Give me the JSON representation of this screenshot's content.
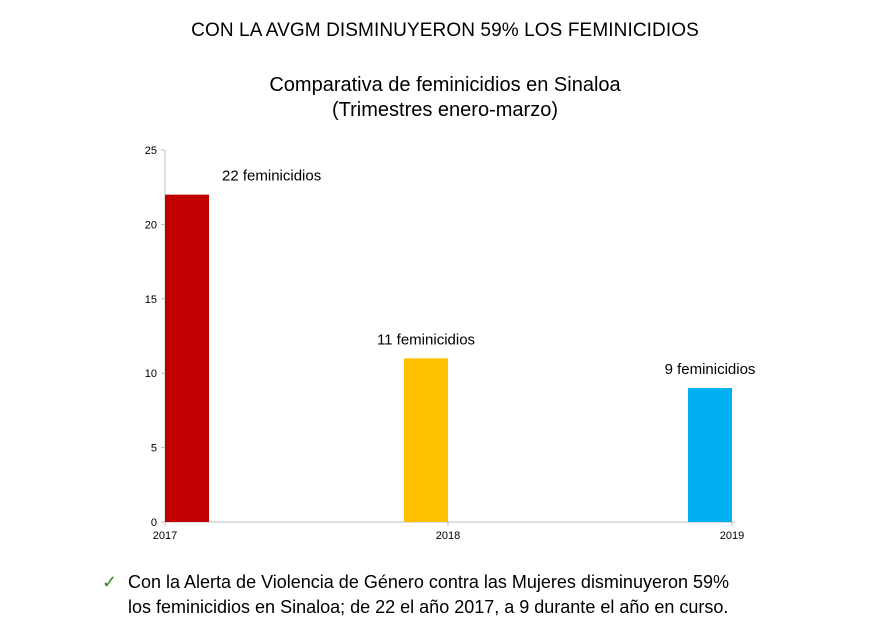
{
  "headline": "CON LA AVGM DISMINUYERON 59% LOS FEMINICIDIOS",
  "chart_data": {
    "type": "bar",
    "title_line1": "Comparativa de feminicidios en Sinaloa",
    "title_line2": "(Trimestres enero-marzo)",
    "categories": [
      "2017",
      "2018",
      "2019"
    ],
    "values": [
      22,
      11,
      9
    ],
    "data_labels": [
      "22 feminicidios",
      "11 feminicidios",
      "9 feminicidios"
    ],
    "colors": [
      "#c00000",
      "#ffc000",
      "#00b0f0"
    ],
    "ylim": [
      0,
      25
    ],
    "yticks": [
      "0",
      "5",
      "10",
      "15",
      "20",
      "25"
    ],
    "grid": false,
    "xlabel": "",
    "ylabel": ""
  },
  "footnote": {
    "icon": "check-icon",
    "line1": "Con la Alerta de Violencia de Género contra las Mujeres disminuyeron 59%",
    "line2": "los feminicidios en Sinaloa; de 22 el año 2017, a 9 durante el año en curso."
  }
}
